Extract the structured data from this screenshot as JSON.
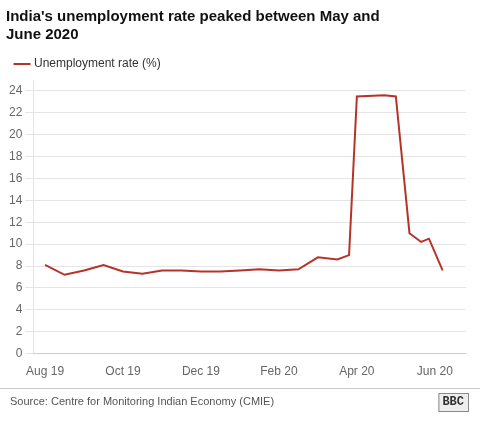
{
  "chart_data": {
    "type": "line",
    "title": [
      "India's unemployment rate peaked between May and",
      "June 2020"
    ],
    "x": [
      0.0,
      0.5,
      1.0,
      1.5,
      2.0,
      2.5,
      3.0,
      3.5,
      4.0,
      4.5,
      5.0,
      5.5,
      6.0,
      6.5,
      7.0,
      7.5,
      7.8,
      8.0,
      8.7,
      9.0,
      9.35,
      9.65,
      9.85,
      10.2
    ],
    "series": [
      {
        "name": "Unemployment rate (%)",
        "color": "#b5342a",
        "values": [
          8.1,
          7.2,
          7.6,
          8.1,
          7.5,
          7.3,
          7.6,
          7.6,
          7.5,
          7.5,
          7.6,
          7.7,
          7.6,
          7.7,
          8.8,
          8.6,
          9.0,
          23.5,
          23.6,
          23.5,
          11.0,
          10.2,
          10.5,
          7.6
        ]
      }
    ],
    "xlim": [
      -0.3,
      10.8
    ],
    "xticks": [
      {
        "value": 0,
        "label": "Aug 19"
      },
      {
        "value": 2,
        "label": "Oct 19"
      },
      {
        "value": 4,
        "label": "Dec 19"
      },
      {
        "value": 6,
        "label": "Feb 20"
      },
      {
        "value": 8,
        "label": "Apr 20"
      },
      {
        "value": 10,
        "label": "Jun 20"
      }
    ],
    "ylim": [
      0,
      25
    ],
    "yticks": [
      0,
      2,
      4,
      6,
      8,
      10,
      12,
      14,
      16,
      18,
      20,
      22,
      24
    ],
    "grid": "y",
    "legend": "upper left",
    "annotations": [
      "Source: Centre for Monitoring Indian Economy (CMIE)",
      "BBC"
    ]
  }
}
